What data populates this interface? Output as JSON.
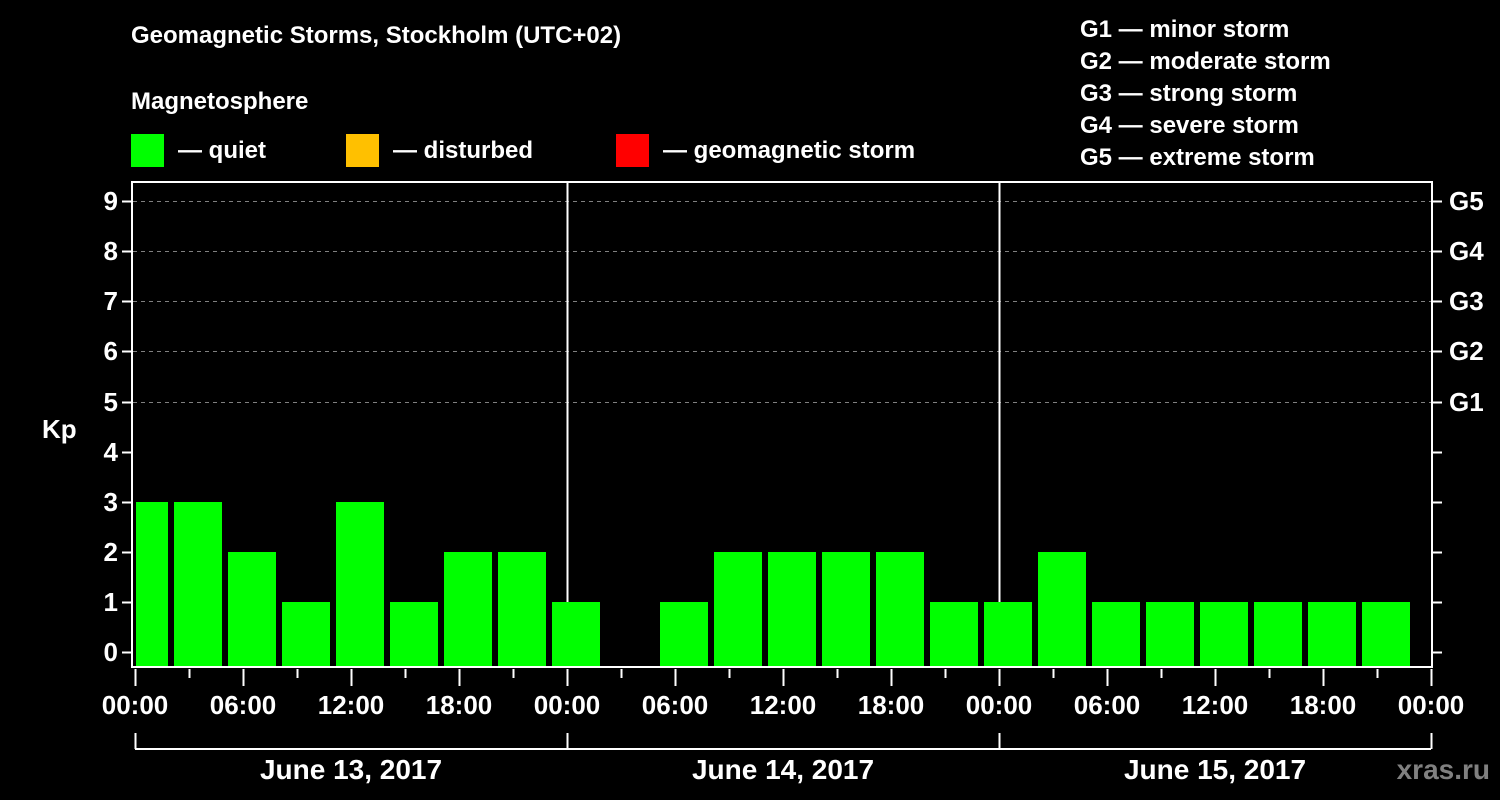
{
  "header": {
    "title": "Geomagnetic Storms, Stockholm (UTC+02)",
    "subtitle": "Magnetosphere"
  },
  "legend": {
    "items": [
      {
        "label": "— quiet",
        "color": "#00ff00"
      },
      {
        "label": "— disturbed",
        "color": "#ffc000"
      },
      {
        "label": "— geomagnetic storm",
        "color": "#ff0000"
      }
    ]
  },
  "g_legend": [
    "G1 — minor storm",
    "G2 — moderate storm",
    "G3 — strong storm",
    "G4 — severe storm",
    "G5 — extreme storm"
  ],
  "watermark": "xras.ru",
  "chart_data": {
    "type": "bar",
    "title": "Geomagnetic Storms, Stockholm (UTC+02)",
    "subtitle": "Magnetosphere",
    "ylabel": "Kp",
    "xlabel": "",
    "ylim": [
      0,
      9
    ],
    "yticks": [
      0,
      1,
      2,
      3,
      4,
      5,
      6,
      7,
      8,
      9
    ],
    "right_axis_labels": {
      "5": "G1",
      "6": "G2",
      "7": "G3",
      "8": "G4",
      "9": "G5"
    },
    "grid": "dashed horizontal lines at Kp 5-9",
    "x_tick_labels": [
      "00:00",
      "06:00",
      "12:00",
      "18:00",
      "00:00",
      "06:00",
      "12:00",
      "18:00",
      "00:00",
      "06:00",
      "12:00",
      "18:00",
      "00:00"
    ],
    "dates": [
      "June 13, 2017",
      "June 14, 2017",
      "June 15, 2017"
    ],
    "interval_hours": 3,
    "categories": [
      "Jun13 00:00",
      "Jun13 03:00",
      "Jun13 06:00",
      "Jun13 09:00",
      "Jun13 12:00",
      "Jun13 15:00",
      "Jun13 18:00",
      "Jun13 21:00",
      "Jun14 00:00",
      "Jun14 03:00",
      "Jun14 06:00",
      "Jun14 09:00",
      "Jun14 12:00",
      "Jun14 15:00",
      "Jun14 18:00",
      "Jun14 21:00",
      "Jun15 00:00",
      "Jun15 03:00",
      "Jun15 06:00",
      "Jun15 09:00",
      "Jun15 12:00",
      "Jun15 15:00",
      "Jun15 18:00",
      "Jun15 21:00"
    ],
    "series": [
      {
        "name": "Kp",
        "values": [
          3,
          3,
          2,
          1,
          3,
          1,
          2,
          2,
          1,
          0,
          1,
          2,
          2,
          2,
          2,
          1,
          1,
          2,
          1,
          1,
          1,
          1,
          1,
          1
        ],
        "colors": "all quiet (#00ff00)"
      }
    ],
    "legend": [
      "quiet",
      "disturbed",
      "geomagnetic storm"
    ],
    "legend_position": "top"
  }
}
